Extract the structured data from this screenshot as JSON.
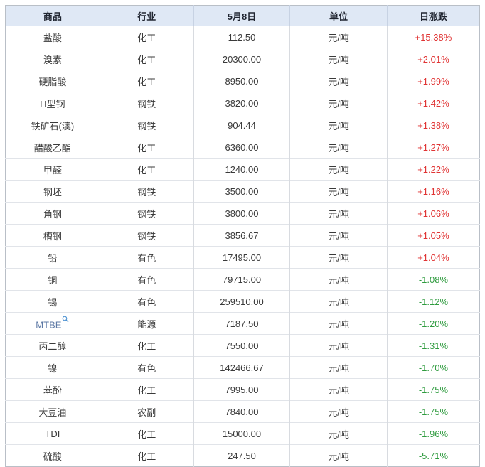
{
  "chart_data": {
    "type": "table",
    "columns": [
      "商品",
      "行业",
      "5月8日",
      "单位",
      "日涨跌"
    ],
    "rows": [
      [
        "盐酸",
        "化工",
        "112.50",
        "元/吨",
        "+15.38%"
      ],
      [
        "溴素",
        "化工",
        "20300.00",
        "元/吨",
        "+2.01%"
      ],
      [
        "硬脂酸",
        "化工",
        "8950.00",
        "元/吨",
        "+1.99%"
      ],
      [
        "H型钢",
        "钢铁",
        "3820.00",
        "元/吨",
        "+1.42%"
      ],
      [
        "铁矿石(澳)",
        "钢铁",
        "904.44",
        "元/吨",
        "+1.38%"
      ],
      [
        "醋酸乙酯",
        "化工",
        "6360.00",
        "元/吨",
        "+1.27%"
      ],
      [
        "甲醛",
        "化工",
        "1240.00",
        "元/吨",
        "+1.22%"
      ],
      [
        "钢坯",
        "钢铁",
        "3500.00",
        "元/吨",
        "+1.16%"
      ],
      [
        "角钢",
        "钢铁",
        "3800.00",
        "元/吨",
        "+1.06%"
      ],
      [
        "槽钢",
        "钢铁",
        "3856.67",
        "元/吨",
        "+1.05%"
      ],
      [
        "铅",
        "有色",
        "17495.00",
        "元/吨",
        "+1.04%"
      ],
      [
        "铜",
        "有色",
        "79715.00",
        "元/吨",
        "-1.08%"
      ],
      [
        "锡",
        "有色",
        "259510.00",
        "元/吨",
        "-1.12%"
      ],
      [
        "MTBE",
        "能源",
        "7187.50",
        "元/吨",
        "-1.20%"
      ],
      [
        "丙二醇",
        "化工",
        "7550.00",
        "元/吨",
        "-1.31%"
      ],
      [
        "镍",
        "有色",
        "142466.67",
        "元/吨",
        "-1.70%"
      ],
      [
        "苯酚",
        "化工",
        "7995.00",
        "元/吨",
        "-1.75%"
      ],
      [
        "大豆油",
        "农副",
        "7840.00",
        "元/吨",
        "-1.75%"
      ],
      [
        "TDI",
        "化工",
        "15000.00",
        "元/吨",
        "-1.96%"
      ],
      [
        "硫酸",
        "化工",
        "247.50",
        "元/吨",
        "-5.71%"
      ]
    ]
  },
  "table": {
    "header": {
      "commodity": "商品",
      "industry": "行业",
      "date": "5月8日",
      "unit": "单位",
      "change": "日涨跌"
    },
    "rows": [
      {
        "name": "盐酸",
        "industry": "化工",
        "price": "112.50",
        "unit": "元/吨",
        "change": "+15.38%",
        "direction": "up"
      },
      {
        "name": "溴素",
        "industry": "化工",
        "price": "20300.00",
        "unit": "元/吨",
        "change": "+2.01%",
        "direction": "up"
      },
      {
        "name": "硬脂酸",
        "industry": "化工",
        "price": "8950.00",
        "unit": "元/吨",
        "change": "+1.99%",
        "direction": "up"
      },
      {
        "name": "H型钢",
        "industry": "钢铁",
        "price": "3820.00",
        "unit": "元/吨",
        "change": "+1.42%",
        "direction": "up"
      },
      {
        "name": "铁矿石(澳)",
        "industry": "钢铁",
        "price": "904.44",
        "unit": "元/吨",
        "change": "+1.38%",
        "direction": "up"
      },
      {
        "name": "醋酸乙酯",
        "industry": "化工",
        "price": "6360.00",
        "unit": "元/吨",
        "change": "+1.27%",
        "direction": "up"
      },
      {
        "name": "甲醛",
        "industry": "化工",
        "price": "1240.00",
        "unit": "元/吨",
        "change": "+1.22%",
        "direction": "up"
      },
      {
        "name": "钢坯",
        "industry": "钢铁",
        "price": "3500.00",
        "unit": "元/吨",
        "change": "+1.16%",
        "direction": "up"
      },
      {
        "name": "角钢",
        "industry": "钢铁",
        "price": "3800.00",
        "unit": "元/吨",
        "change": "+1.06%",
        "direction": "up"
      },
      {
        "name": "槽钢",
        "industry": "钢铁",
        "price": "3856.67",
        "unit": "元/吨",
        "change": "+1.05%",
        "direction": "up"
      },
      {
        "name": "铅",
        "industry": "有色",
        "price": "17495.00",
        "unit": "元/吨",
        "change": "+1.04%",
        "direction": "up"
      },
      {
        "name": "铜",
        "industry": "有色",
        "price": "79715.00",
        "unit": "元/吨",
        "change": "-1.08%",
        "direction": "down"
      },
      {
        "name": "锡",
        "industry": "有色",
        "price": "259510.00",
        "unit": "元/吨",
        "change": "-1.12%",
        "direction": "down"
      },
      {
        "name": "MTBE",
        "industry": "能源",
        "price": "7187.50",
        "unit": "元/吨",
        "change": "-1.20%",
        "direction": "down",
        "link": true,
        "icon": "search-icon"
      },
      {
        "name": "丙二醇",
        "industry": "化工",
        "price": "7550.00",
        "unit": "元/吨",
        "change": "-1.31%",
        "direction": "down"
      },
      {
        "name": "镍",
        "industry": "有色",
        "price": "142466.67",
        "unit": "元/吨",
        "change": "-1.70%",
        "direction": "down"
      },
      {
        "name": "苯酚",
        "industry": "化工",
        "price": "7995.00",
        "unit": "元/吨",
        "change": "-1.75%",
        "direction": "down"
      },
      {
        "name": "大豆油",
        "industry": "农副",
        "price": "7840.00",
        "unit": "元/吨",
        "change": "-1.75%",
        "direction": "down"
      },
      {
        "name": "TDI",
        "industry": "化工",
        "price": "15000.00",
        "unit": "元/吨",
        "change": "-1.96%",
        "direction": "down"
      },
      {
        "name": "硫酸",
        "industry": "化工",
        "price": "247.50",
        "unit": "元/吨",
        "change": "-5.71%",
        "direction": "down"
      }
    ]
  },
  "colors": {
    "up": "#e03333",
    "down": "#2f9b3f",
    "header_bg": "#dfe8f5",
    "link": "#5d79a5"
  }
}
